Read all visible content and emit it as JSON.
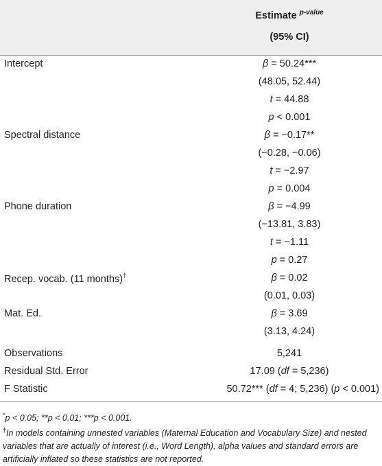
{
  "header": {
    "col_title": "Estimate",
    "col_title_sup": "p-value",
    "col_subtitle": "(95% CI)"
  },
  "rows": [
    {
      "label": "Intercept",
      "values": [
        {
          "sym": "β",
          "rest": " = 50.24***"
        },
        {
          "text": "(48.05, 52.44)"
        },
        {
          "sym": "t",
          "rest": " = 44.88"
        },
        {
          "sym": "p",
          "rest": " < 0.001"
        }
      ]
    },
    {
      "label": "Spectral distance",
      "values": [
        {
          "sym": "β",
          "rest": " = −0.17**"
        },
        {
          "text": "(−0.28, −0.06)"
        },
        {
          "sym": "t",
          "rest": " = −2.97"
        },
        {
          "sym": "p",
          "rest": " = 0.004"
        }
      ]
    },
    {
      "label": "Phone duration",
      "values": [
        {
          "sym": "β",
          "rest": " = −4.99"
        },
        {
          "text": "(−13.81, 3.83)"
        },
        {
          "sym": "t",
          "rest": " = −1.11"
        },
        {
          "sym": "p",
          "rest": " = 0.27"
        }
      ]
    },
    {
      "label": "Recep. vocab. (11 months)",
      "label_sup": "†",
      "values": [
        {
          "sym": "β",
          "rest": " = 0.02"
        },
        {
          "text": "(0.01, 0.03)"
        }
      ]
    },
    {
      "label": "Mat. Ed.",
      "values": [
        {
          "sym": "β",
          "rest": " = 3.69"
        },
        {
          "text": "(3.13, 4.24)"
        }
      ]
    }
  ],
  "stats": {
    "observations_label": "Observations",
    "observations_value": "5,241",
    "rse_label": "Residual Std. Error",
    "rse_value": "17.09",
    "rse_df_open": " (",
    "rse_df_sym": "df",
    "rse_df_rest": " = 5,236)",
    "f_label": "F Statistic",
    "f_value": "50.72***",
    "f_df_open": " (",
    "f_df_sym": "df",
    "f_df_rest": " = 4; 5,236) (",
    "f_p_sym": "p",
    "f_p_rest": " < 0.001)"
  },
  "footnotes": {
    "sig_sup1": "*",
    "sig_text": "p < 0.05; **p < 0.01; ***p < 0.001.",
    "dagger_sup": "†",
    "dagger_text": "In models containing unnested variables (Maternal Education and Vocabulary Size) and nested variables that are actually of interest (i.e., Word Length), alpha values and standard errors are artificially inflated so these statistics are not reported."
  }
}
